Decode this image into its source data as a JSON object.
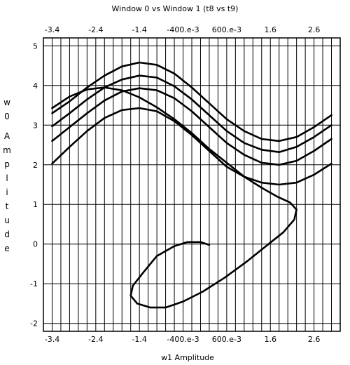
{
  "chart_data": {
    "type": "line",
    "title": "Window 0 vs Window 1 (t8 vs t9)",
    "xlabel": "w1 Amplitude",
    "ylabel": "w0 Amplitude",
    "xlim": [
      -3.6,
      3.2
    ],
    "ylim": [
      -2.2,
      5.2
    ],
    "grid": true,
    "x_ticks": [
      {
        "value": -3.4,
        "label": "-3.4"
      },
      {
        "value": -2.4,
        "label": "-2.4"
      },
      {
        "value": -1.4,
        "label": "-1.4"
      },
      {
        "value": -0.4,
        "label": "-400.e-3"
      },
      {
        "value": 0.6,
        "label": "600.e-3"
      },
      {
        "value": 1.6,
        "label": "1.6"
      },
      {
        "value": 2.6,
        "label": "2.6"
      }
    ],
    "y_ticks": [
      {
        "value": -2,
        "label": "-2"
      },
      {
        "value": -1,
        "label": "-1"
      },
      {
        "value": 0,
        "label": "0"
      },
      {
        "value": 1,
        "label": "1"
      },
      {
        "value": 2,
        "label": "2"
      },
      {
        "value": 3,
        "label": "3"
      },
      {
        "value": 4,
        "label": "4"
      },
      {
        "value": 5,
        "label": "5"
      }
    ],
    "series": [
      {
        "x": [
          -3.4,
          -3.0,
          -2.6,
          -2.2,
          -1.8,
          -1.4,
          -1.0,
          -0.6,
          -0.2,
          0.2,
          0.6,
          1.0,
          1.4,
          1.8,
          2.2,
          2.6,
          3.0
        ],
        "y": [
          3.3,
          3.6,
          3.95,
          4.25,
          4.48,
          4.58,
          4.52,
          4.3,
          3.95,
          3.55,
          3.15,
          2.85,
          2.65,
          2.6,
          2.7,
          2.95,
          3.25
        ]
      },
      {
        "x": [
          -3.4,
          -3.0,
          -2.6,
          -2.2,
          -1.8,
          -1.4,
          -1.0,
          -0.6,
          -0.2,
          0.2,
          0.6,
          1.0,
          1.4,
          1.8,
          2.2,
          2.6,
          3.0
        ],
        "y": [
          2.97,
          3.3,
          3.65,
          3.95,
          4.15,
          4.25,
          4.2,
          3.98,
          3.65,
          3.25,
          2.85,
          2.55,
          2.38,
          2.32,
          2.45,
          2.7,
          3.0
        ]
      },
      {
        "x": [
          -3.4,
          -3.0,
          -2.6,
          -2.2,
          -1.8,
          -1.4,
          -1.0,
          -0.6,
          -0.2,
          0.2,
          0.6,
          1.0,
          1.4,
          1.8,
          2.2,
          2.6,
          3.0
        ],
        "y": [
          2.6,
          2.95,
          3.3,
          3.62,
          3.85,
          3.93,
          3.88,
          3.68,
          3.35,
          2.95,
          2.55,
          2.25,
          2.05,
          2.0,
          2.1,
          2.35,
          2.65
        ]
      },
      {
        "x": [
          -3.4,
          -3.0,
          -2.6,
          -2.2,
          -1.8,
          -1.4,
          -1.0,
          -0.6,
          -0.2,
          0.2,
          0.6,
          1.0,
          1.4,
          1.8,
          2.2,
          2.6,
          3.0
        ],
        "y": [
          2.03,
          2.45,
          2.85,
          3.18,
          3.38,
          3.43,
          3.35,
          3.1,
          2.75,
          2.35,
          1.95,
          1.7,
          1.55,
          1.5,
          1.55,
          1.75,
          2.03
        ]
      },
      {
        "x": [
          0.2,
          0.0,
          -0.3,
          -0.6,
          -1.0,
          -1.3,
          -1.55,
          -1.6,
          -1.45,
          -1.15,
          -0.8,
          -0.4,
          0.05,
          0.55,
          1.05,
          1.5,
          1.9,
          2.15,
          2.2,
          2.05,
          1.75,
          1.4,
          1.0,
          0.6,
          0.2,
          -0.2,
          -0.6,
          -1.0,
          -1.4,
          -1.8,
          -2.2,
          -2.6,
          -3.0,
          -3.4
        ],
        "y": [
          -0.02,
          0.05,
          0.05,
          -0.05,
          -0.3,
          -0.7,
          -1.05,
          -1.3,
          -1.5,
          -1.6,
          -1.6,
          -1.45,
          -1.2,
          -0.85,
          -0.45,
          -0.05,
          0.3,
          0.62,
          0.87,
          1.05,
          1.2,
          1.42,
          1.7,
          2.05,
          2.4,
          2.8,
          3.15,
          3.45,
          3.7,
          3.88,
          3.95,
          3.9,
          3.72,
          3.43
        ]
      }
    ]
  }
}
